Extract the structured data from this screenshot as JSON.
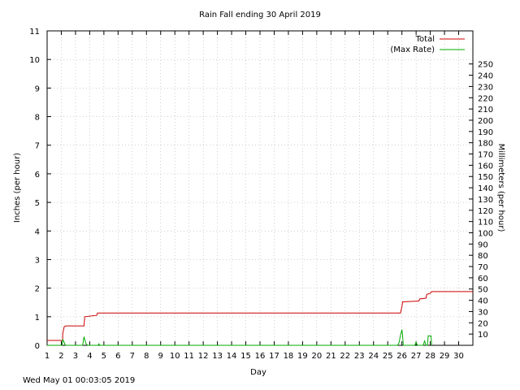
{
  "footer": {
    "timestamp": "Wed May 01 00:03:05 2019"
  },
  "chart_data": {
    "type": "line",
    "title": "Rain Fall ending 30 April 2019",
    "xlabel": "Day",
    "ylabel": "Inches (per hour)",
    "y2label": "Millimeters (per hour)",
    "xlim": [
      1,
      31
    ],
    "ylim": [
      0,
      11
    ],
    "y2lim": [
      0,
      279.4
    ],
    "x_ticks": [
      1,
      2,
      3,
      4,
      5,
      6,
      7,
      8,
      9,
      10,
      11,
      12,
      13,
      14,
      15,
      16,
      17,
      18,
      19,
      20,
      21,
      22,
      23,
      24,
      25,
      26,
      27,
      28,
      29,
      30
    ],
    "y_ticks": [
      0,
      1,
      2,
      3,
      4,
      5,
      6,
      7,
      8,
      9,
      10,
      11
    ],
    "y2_ticks": [
      10,
      20,
      30,
      40,
      50,
      60,
      70,
      80,
      90,
      100,
      110,
      120,
      130,
      140,
      150,
      160,
      170,
      180,
      190,
      200,
      210,
      220,
      230,
      240,
      250
    ],
    "grid": true,
    "legend_position": "top-right",
    "series": [
      {
        "name": "Total",
        "color": "#cc0000",
        "x": [
          1,
          2.1,
          2.1,
          2.2,
          2.3,
          3.6,
          3.65,
          4.5,
          4.55,
          25.9,
          26.0,
          26.05,
          27.2,
          27.25,
          27.7,
          27.75,
          28.0,
          28.1,
          31
        ],
        "y": [
          0.17,
          0.17,
          0.4,
          0.65,
          0.68,
          0.68,
          1.0,
          1.05,
          1.13,
          1.13,
          1.35,
          1.52,
          1.55,
          1.62,
          1.65,
          1.78,
          1.82,
          1.88,
          1.88
        ]
      },
      {
        "name": "(Max Rate)",
        "color": "#00aa00",
        "x": [
          1,
          2.05,
          2.1,
          2.2,
          2.3,
          3.5,
          3.6,
          3.65,
          3.75,
          3.85,
          4.6,
          4.65,
          4.7,
          25.7,
          25.8,
          25.9,
          26.0,
          26.05,
          26.1,
          26.9,
          27.0,
          27.1,
          27.5,
          27.6,
          27.7,
          27.8,
          27.85,
          28.0,
          28.05,
          28.1
        ],
        "y": [
          0,
          0,
          0.2,
          0.1,
          0,
          0,
          0.3,
          0.2,
          0.05,
          0,
          0,
          0.05,
          0,
          0,
          0.1,
          0.35,
          0.55,
          0.35,
          0,
          0,
          0.1,
          0,
          0,
          0.15,
          0,
          0,
          0.33,
          0.33,
          0.33,
          0
        ]
      }
    ]
  }
}
